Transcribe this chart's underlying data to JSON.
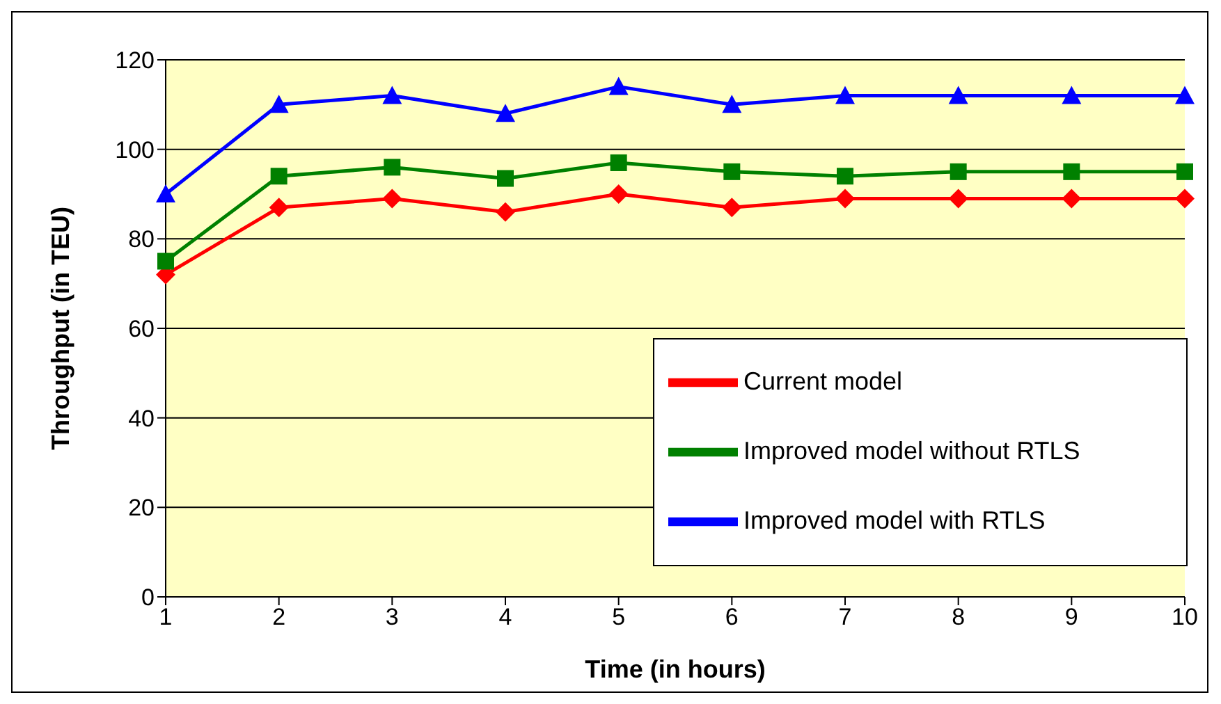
{
  "chart_data": {
    "type": "line",
    "xlabel": "Time (in hours)",
    "ylabel": "Throughput (in TEU)",
    "categories": [
      "1",
      "2",
      "3",
      "4",
      "5",
      "6",
      "7",
      "8",
      "9",
      "10"
    ],
    "series": [
      {
        "name": "Current model",
        "color": "#ff0000",
        "marker": "diamond",
        "values": [
          72,
          87,
          89,
          86,
          90,
          87,
          89,
          89,
          89,
          89
        ]
      },
      {
        "name": "Improved model without RTLS",
        "color": "#008000",
        "marker": "square",
        "values": [
          75,
          94,
          96,
          93.5,
          97,
          95,
          94,
          95,
          95,
          95
        ]
      },
      {
        "name": "Improved model with RTLS",
        "color": "#0000ff",
        "marker": "triangle",
        "values": [
          90,
          110,
          112,
          108,
          114,
          110,
          112,
          112,
          112,
          112
        ]
      }
    ],
    "ylim": [
      0,
      120
    ],
    "yticks": [
      0,
      20,
      40,
      60,
      80,
      100,
      120
    ],
    "grid": "y",
    "legend": "bottom right",
    "line_style": "solid"
  }
}
